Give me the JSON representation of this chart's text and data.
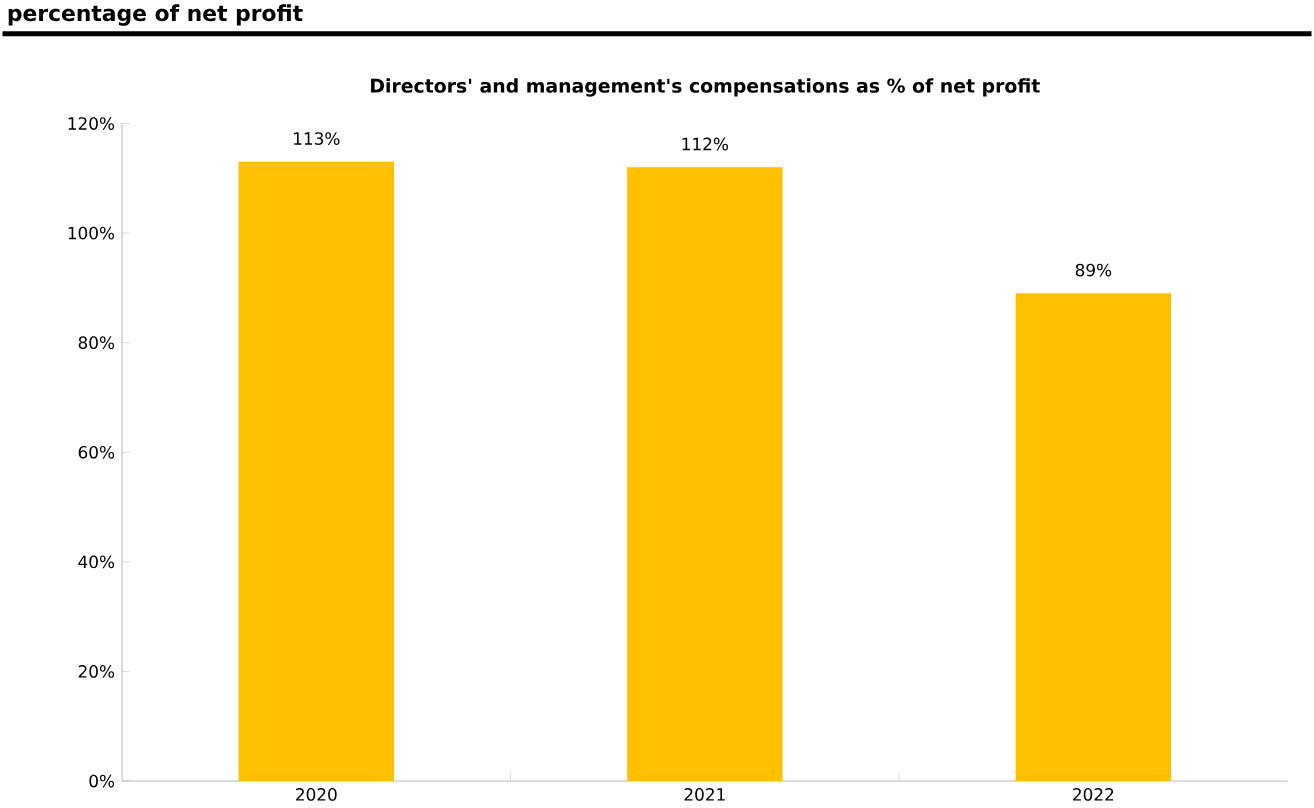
{
  "chart_data": {
    "type": "bar",
    "title": "Directors' and management's compensations as % of net profit",
    "annotations": [
      "percentage of net profit"
    ],
    "categories": [
      "2020",
      "2021",
      "2022"
    ],
    "values": [
      113,
      112,
      89
    ],
    "value_labels": [
      "113%",
      "112%",
      "89%"
    ],
    "color": "#ffc000",
    "ylim": [
      0,
      120
    ],
    "yticks": [
      {
        "value": 0,
        "label": "0%"
      },
      {
        "value": 20,
        "label": "20%"
      },
      {
        "value": 40,
        "label": "40%"
      },
      {
        "value": 60,
        "label": "60%"
      },
      {
        "value": 80,
        "label": "80%"
      },
      {
        "value": 100,
        "label": "100%"
      },
      {
        "value": 120,
        "label": "120%"
      }
    ]
  }
}
